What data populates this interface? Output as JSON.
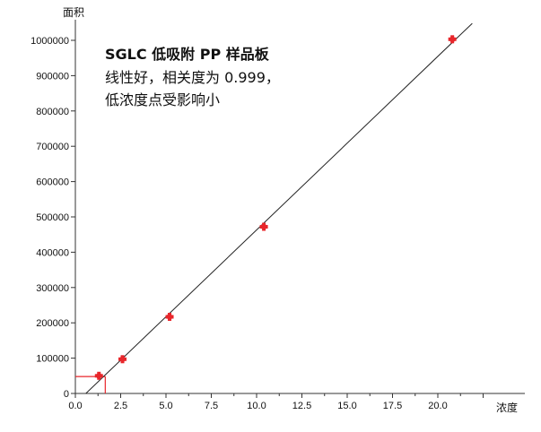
{
  "chart_data": {
    "type": "scatter",
    "title": "",
    "xlabel": "浓度",
    "ylabel": "面积",
    "xlim": [
      0.0,
      22.5
    ],
    "ylim": [
      0,
      1050000
    ],
    "x_ticks": [
      0.0,
      2.5,
      5.0,
      7.5,
      10.0,
      12.5,
      15.0,
      17.5,
      20.0
    ],
    "x_tick_labels": [
      "0.0",
      "2.5",
      "5.0",
      "7.5",
      "10.0",
      "12.5",
      "15.0",
      "17.5",
      "20.0"
    ],
    "y_ticks": [
      0,
      100000,
      200000,
      300000,
      400000,
      500000,
      600000,
      700000,
      800000,
      900000,
      1000000
    ],
    "y_tick_labels": [
      "0",
      "100000",
      "200000",
      "300000",
      "400000",
      "500000",
      "600000",
      "700000",
      "800000",
      "900000",
      "1000000"
    ],
    "points": [
      {
        "x": 1.3,
        "y": 50000
      },
      {
        "x": 2.6,
        "y": 97000
      },
      {
        "x": 5.2,
        "y": 217000
      },
      {
        "x": 10.4,
        "y": 472000
      },
      {
        "x": 20.8,
        "y": 1003000
      }
    ],
    "fit_line": {
      "x": [
        0.58,
        21.9
      ],
      "y": [
        0,
        1048000
      ]
    },
    "lod_marker": {
      "x": 1.65,
      "y": 48000
    },
    "annotation": {
      "line1": "SGLC 低吸附 PP 样品板",
      "line2": "线性好，相关度为 0.999，",
      "line3": "低浓度点受影响小"
    },
    "grid": false,
    "colors": {
      "points": "#e8262b",
      "marker": "#e8262b",
      "fit": "#222222",
      "axis": "#333333"
    }
  }
}
